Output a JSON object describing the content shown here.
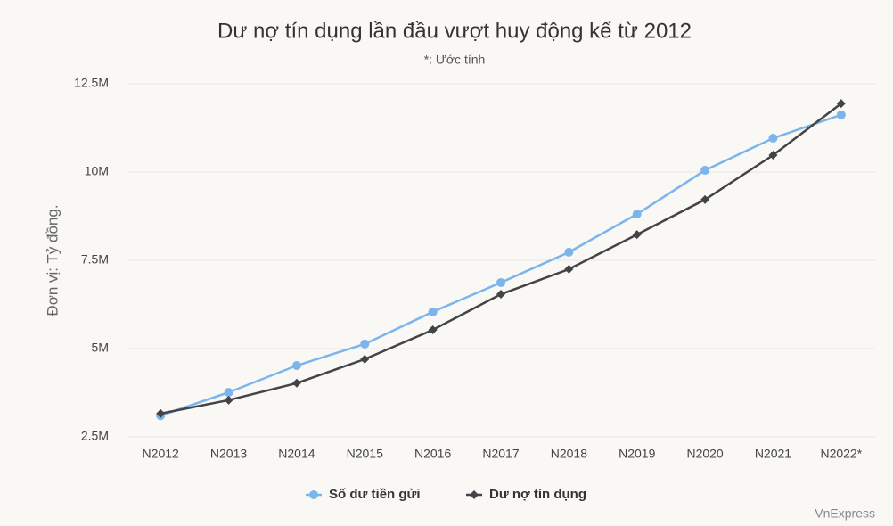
{
  "chart_data": {
    "type": "line",
    "title": "Dư nợ tín dụng lần đầu vượt huy động kể từ 2012",
    "subtitle": "*: Ước tính",
    "y_label": "Đơn vị: Tỷ đồng.",
    "source": "VnExpress",
    "categories": [
      "N2012",
      "N2013",
      "N2014",
      "N2015",
      "N2016",
      "N2017",
      "N2018",
      "N2019",
      "N2020",
      "N2021",
      "N2022*"
    ],
    "series": [
      {
        "name": "Số dư tiền gửi",
        "color": "#7cb5ec",
        "marker": "circle",
        "values": [
          3100000,
          3760000,
          4520000,
          5130000,
          6040000,
          6870000,
          7730000,
          8810000,
          10050000,
          10960000,
          11620000
        ]
      },
      {
        "name": "Dư nợ tín dụng",
        "color": "#434348",
        "marker": "diamond",
        "values": [
          3160000,
          3540000,
          4020000,
          4700000,
          5530000,
          6540000,
          7250000,
          8230000,
          9220000,
          10480000,
          11940000
        ]
      }
    ],
    "ylim": [
      2500000,
      12500000
    ],
    "yticks": [
      {
        "value": 2500000,
        "label": "2.5M"
      },
      {
        "value": 5000000,
        "label": "5M"
      },
      {
        "value": 7500000,
        "label": "7.5M"
      },
      {
        "value": 10000000,
        "label": "10M"
      },
      {
        "value": 12500000,
        "label": "12.5M"
      }
    ],
    "grid": true,
    "legend": "bottom"
  }
}
